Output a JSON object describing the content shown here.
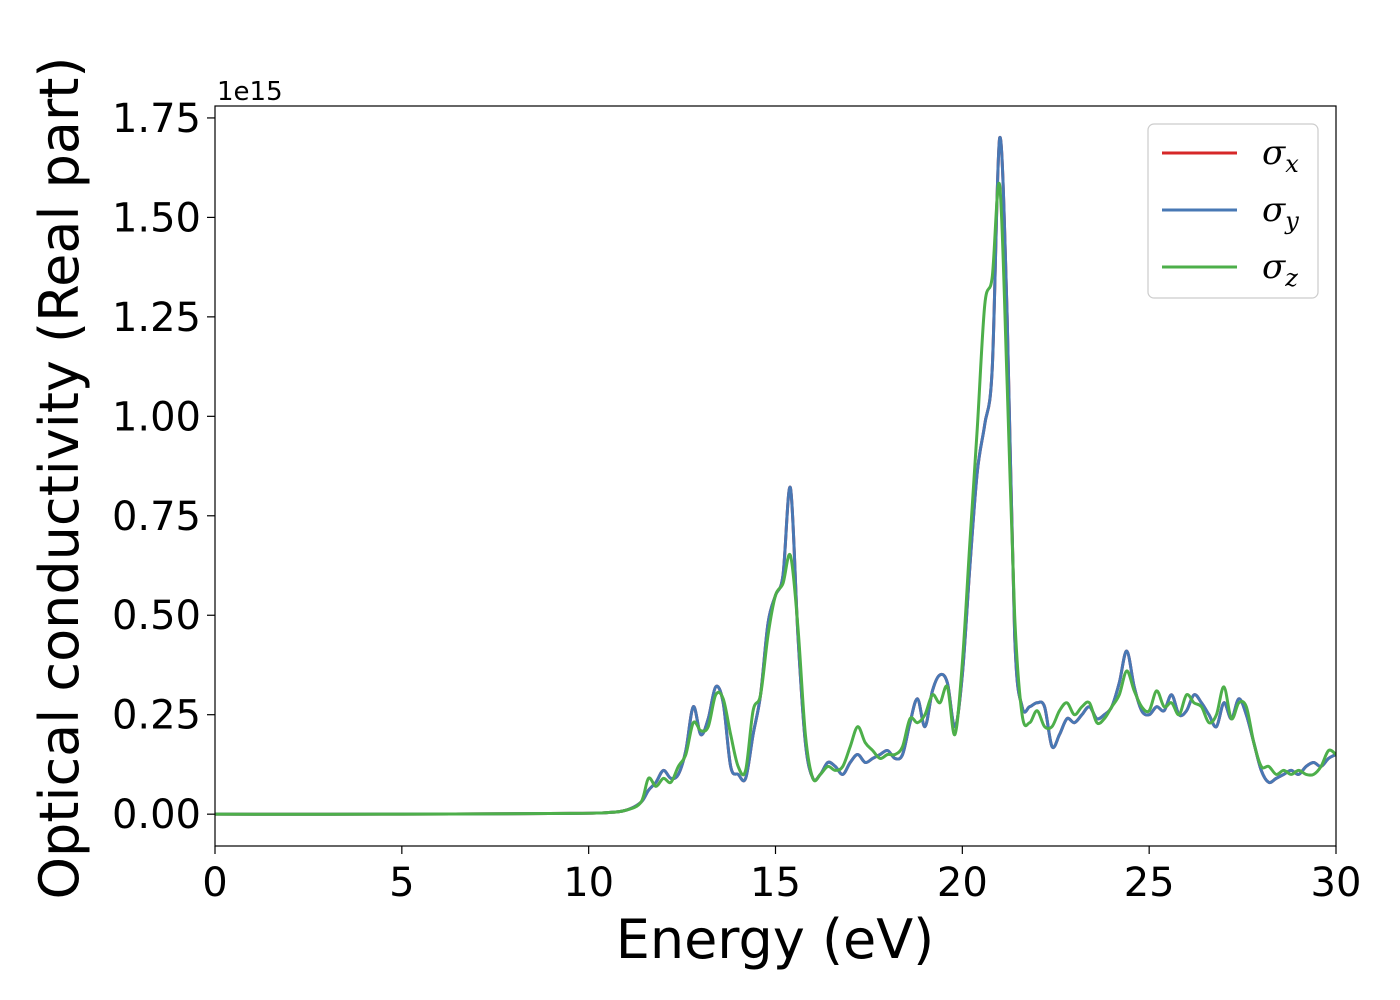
{
  "chart_data": {
    "type": "line",
    "xlabel": "Energy (eV)",
    "ylabel": "Optical conductivity (Real part)",
    "y_offset_text": "1e15",
    "xlim": [
      0,
      30
    ],
    "ylim": [
      -0.08,
      1.78
    ],
    "xticks": [
      0,
      5,
      10,
      15,
      20,
      25,
      30
    ],
    "xtick_labels": [
      "0",
      "5",
      "10",
      "15",
      "20",
      "25",
      "30"
    ],
    "yticks": [
      0.0,
      0.25,
      0.5,
      0.75,
      1.0,
      1.25,
      1.5,
      1.75
    ],
    "ytick_labels": [
      "0.00",
      "0.25",
      "0.50",
      "0.75",
      "1.00",
      "1.25",
      "1.50",
      "1.75"
    ],
    "grid": false,
    "legend_position": "top-right",
    "series": [
      {
        "name": "σx",
        "symbol": "σ",
        "subscript": "x",
        "color": "#d62728",
        "x": [
          0,
          5,
          9.5,
          10.5,
          11,
          11.4,
          11.6,
          11.8,
          12.0,
          12.2,
          12.4,
          12.6,
          12.8,
          13.0,
          13.2,
          13.4,
          13.6,
          13.8,
          14.0,
          14.2,
          14.4,
          14.6,
          14.8,
          15.0,
          15.2,
          15.4,
          15.6,
          15.8,
          16.0,
          16.2,
          16.4,
          16.6,
          16.8,
          17.0,
          17.2,
          17.4,
          17.6,
          17.8,
          18.0,
          18.2,
          18.4,
          18.6,
          18.8,
          19.0,
          19.2,
          19.4,
          19.6,
          19.8,
          20.0,
          20.2,
          20.4,
          20.6,
          20.8,
          21.0,
          21.2,
          21.4,
          21.6,
          21.8,
          22.0,
          22.2,
          22.4,
          22.6,
          22.8,
          23.0,
          23.2,
          23.4,
          23.6,
          23.8,
          24.0,
          24.2,
          24.4,
          24.6,
          24.8,
          25.0,
          25.2,
          25.4,
          25.6,
          25.8,
          26.0,
          26.2,
          26.4,
          26.6,
          26.8,
          27.0,
          27.2,
          27.4,
          27.6,
          27.8,
          28.0,
          28.2,
          28.4,
          28.6,
          28.8,
          29.0,
          29.2,
          29.4,
          29.6,
          29.8,
          30.0
        ],
        "y": [
          0.0,
          0.0,
          0.002,
          0.004,
          0.01,
          0.03,
          0.06,
          0.08,
          0.11,
          0.09,
          0.1,
          0.16,
          0.27,
          0.2,
          0.24,
          0.32,
          0.28,
          0.12,
          0.1,
          0.09,
          0.2,
          0.3,
          0.48,
          0.55,
          0.6,
          0.82,
          0.45,
          0.18,
          0.09,
          0.1,
          0.13,
          0.12,
          0.1,
          0.13,
          0.15,
          0.13,
          0.14,
          0.15,
          0.16,
          0.14,
          0.15,
          0.23,
          0.29,
          0.22,
          0.31,
          0.35,
          0.33,
          0.22,
          0.35,
          0.62,
          0.86,
          0.98,
          1.12,
          1.7,
          1.25,
          0.45,
          0.27,
          0.27,
          0.28,
          0.27,
          0.17,
          0.2,
          0.24,
          0.23,
          0.25,
          0.27,
          0.24,
          0.25,
          0.27,
          0.33,
          0.41,
          0.32,
          0.26,
          0.25,
          0.27,
          0.26,
          0.3,
          0.25,
          0.26,
          0.3,
          0.28,
          0.25,
          0.22,
          0.28,
          0.24,
          0.29,
          0.25,
          0.18,
          0.11,
          0.08,
          0.09,
          0.1,
          0.11,
          0.1,
          0.12,
          0.13,
          0.12,
          0.14,
          0.15
        ]
      },
      {
        "name": "σy",
        "symbol": "σ",
        "subscript": "y",
        "color": "#4878b4",
        "x": [
          0,
          5,
          9.5,
          10.5,
          11,
          11.4,
          11.6,
          11.8,
          12.0,
          12.2,
          12.4,
          12.6,
          12.8,
          13.0,
          13.2,
          13.4,
          13.6,
          13.8,
          14.0,
          14.2,
          14.4,
          14.6,
          14.8,
          15.0,
          15.2,
          15.4,
          15.6,
          15.8,
          16.0,
          16.2,
          16.4,
          16.6,
          16.8,
          17.0,
          17.2,
          17.4,
          17.6,
          17.8,
          18.0,
          18.2,
          18.4,
          18.6,
          18.8,
          19.0,
          19.2,
          19.4,
          19.6,
          19.8,
          20.0,
          20.2,
          20.4,
          20.6,
          20.8,
          21.0,
          21.2,
          21.4,
          21.6,
          21.8,
          22.0,
          22.2,
          22.4,
          22.6,
          22.8,
          23.0,
          23.2,
          23.4,
          23.6,
          23.8,
          24.0,
          24.2,
          24.4,
          24.6,
          24.8,
          25.0,
          25.2,
          25.4,
          25.6,
          25.8,
          26.0,
          26.2,
          26.4,
          26.6,
          26.8,
          27.0,
          27.2,
          27.4,
          27.6,
          27.8,
          28.0,
          28.2,
          28.4,
          28.6,
          28.8,
          29.0,
          29.2,
          29.4,
          29.6,
          29.8,
          30.0
        ],
        "y": [
          0.0,
          0.0,
          0.002,
          0.004,
          0.01,
          0.03,
          0.06,
          0.08,
          0.11,
          0.09,
          0.1,
          0.16,
          0.27,
          0.2,
          0.24,
          0.32,
          0.28,
          0.12,
          0.1,
          0.09,
          0.2,
          0.3,
          0.48,
          0.55,
          0.6,
          0.82,
          0.45,
          0.18,
          0.09,
          0.1,
          0.13,
          0.12,
          0.1,
          0.13,
          0.15,
          0.13,
          0.14,
          0.15,
          0.16,
          0.14,
          0.15,
          0.23,
          0.29,
          0.22,
          0.31,
          0.35,
          0.33,
          0.22,
          0.35,
          0.62,
          0.86,
          0.98,
          1.12,
          1.7,
          1.25,
          0.45,
          0.27,
          0.27,
          0.28,
          0.27,
          0.17,
          0.2,
          0.24,
          0.23,
          0.25,
          0.27,
          0.24,
          0.25,
          0.27,
          0.33,
          0.41,
          0.32,
          0.26,
          0.25,
          0.27,
          0.26,
          0.3,
          0.25,
          0.26,
          0.3,
          0.28,
          0.25,
          0.22,
          0.28,
          0.24,
          0.29,
          0.25,
          0.18,
          0.11,
          0.08,
          0.09,
          0.1,
          0.11,
          0.1,
          0.12,
          0.13,
          0.12,
          0.14,
          0.15
        ]
      },
      {
        "name": "σz",
        "symbol": "σ",
        "subscript": "z",
        "color": "#4daf4a",
        "x": [
          0,
          5,
          9.5,
          10.5,
          11,
          11.4,
          11.6,
          11.8,
          12.0,
          12.2,
          12.4,
          12.6,
          12.8,
          13.0,
          13.2,
          13.4,
          13.6,
          13.8,
          14.0,
          14.2,
          14.4,
          14.6,
          14.8,
          15.0,
          15.2,
          15.4,
          15.6,
          15.8,
          16.0,
          16.2,
          16.4,
          16.6,
          16.8,
          17.0,
          17.2,
          17.4,
          17.6,
          17.8,
          18.0,
          18.2,
          18.4,
          18.6,
          18.8,
          19.0,
          19.2,
          19.4,
          19.6,
          19.8,
          20.0,
          20.2,
          20.4,
          20.6,
          20.8,
          21.0,
          21.2,
          21.4,
          21.6,
          21.8,
          22.0,
          22.2,
          22.4,
          22.6,
          22.8,
          23.0,
          23.2,
          23.4,
          23.6,
          23.8,
          24.0,
          24.2,
          24.4,
          24.6,
          24.8,
          25.0,
          25.2,
          25.4,
          25.6,
          25.8,
          26.0,
          26.2,
          26.4,
          26.6,
          26.8,
          27.0,
          27.2,
          27.4,
          27.6,
          27.8,
          28.0,
          28.2,
          28.4,
          28.6,
          28.8,
          29.0,
          29.2,
          29.4,
          29.6,
          29.8,
          30.0
        ],
        "y": [
          0.0,
          0.0,
          0.002,
          0.004,
          0.01,
          0.03,
          0.09,
          0.07,
          0.09,
          0.08,
          0.12,
          0.15,
          0.23,
          0.21,
          0.22,
          0.3,
          0.29,
          0.2,
          0.12,
          0.11,
          0.26,
          0.3,
          0.45,
          0.55,
          0.58,
          0.65,
          0.47,
          0.2,
          0.09,
          0.1,
          0.12,
          0.11,
          0.12,
          0.17,
          0.22,
          0.18,
          0.16,
          0.14,
          0.15,
          0.15,
          0.17,
          0.24,
          0.23,
          0.25,
          0.3,
          0.28,
          0.32,
          0.2,
          0.38,
          0.68,
          0.97,
          1.28,
          1.35,
          1.58,
          1.08,
          0.5,
          0.25,
          0.23,
          0.26,
          0.22,
          0.22,
          0.26,
          0.28,
          0.25,
          0.27,
          0.28,
          0.23,
          0.24,
          0.27,
          0.3,
          0.36,
          0.31,
          0.27,
          0.26,
          0.31,
          0.27,
          0.28,
          0.25,
          0.3,
          0.28,
          0.27,
          0.23,
          0.25,
          0.32,
          0.24,
          0.28,
          0.27,
          0.18,
          0.12,
          0.12,
          0.1,
          0.11,
          0.1,
          0.11,
          0.1,
          0.1,
          0.12,
          0.16,
          0.15
        ]
      }
    ]
  }
}
